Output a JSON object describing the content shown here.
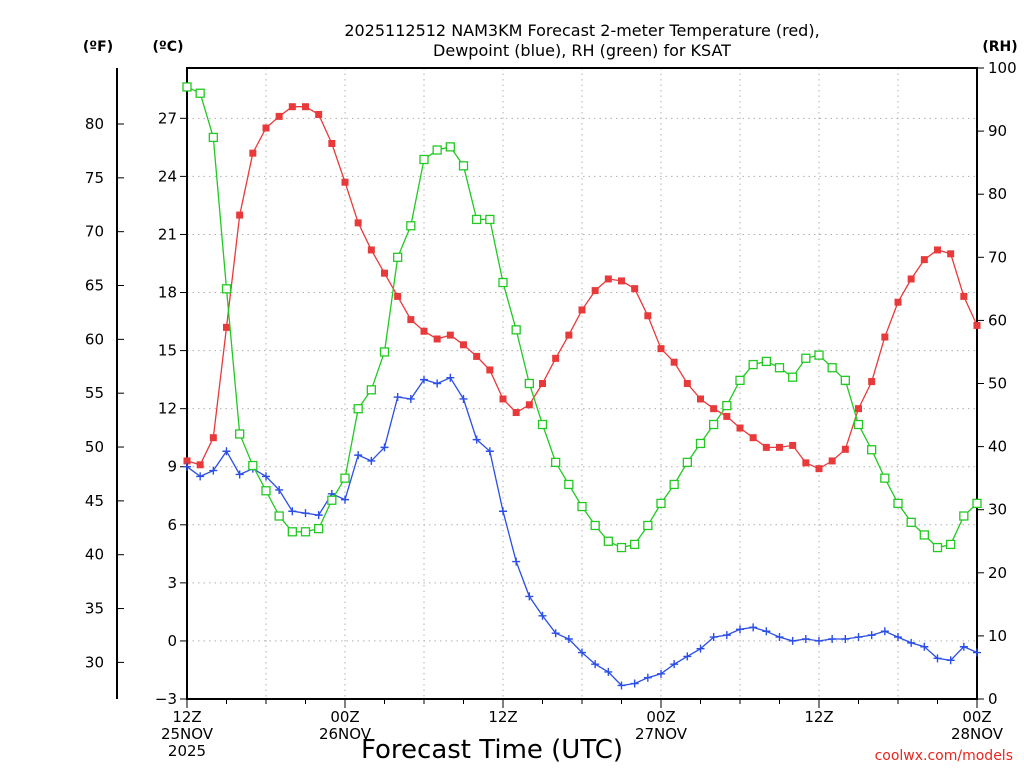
{
  "chart_data": {
    "type": "line",
    "title_lines": [
      "2025112512 NAM3KM Forecast 2-meter Temperature (red),",
      "Dewpoint (blue), RH (green) for KSAT"
    ],
    "xlabel": "Forecast Time (UTC)",
    "credit": "coolwx.com/models",
    "x_unit": "forecast hour",
    "xlim": [
      0,
      60
    ],
    "x_ticks": [
      {
        "x": 0,
        "lines": [
          "12Z",
          "25NOV",
          "2025"
        ]
      },
      {
        "x": 12,
        "lines": [
          "00Z",
          "26NOV"
        ]
      },
      {
        "x": 24,
        "lines": [
          "12Z"
        ]
      },
      {
        "x": 36,
        "lines": [
          "00Z",
          "27NOV"
        ]
      },
      {
        "x": 48,
        "lines": [
          "12Z"
        ]
      },
      {
        "x": 60,
        "lines": [
          "00Z",
          "28NOV"
        ]
      }
    ],
    "axes": {
      "fahrenheit": {
        "unit_label": "(ºF)",
        "range": [
          26.6,
          85.2
        ],
        "ticks": [
          30,
          35,
          40,
          45,
          50,
          55,
          60,
          65,
          70,
          75,
          80
        ]
      },
      "celsius": {
        "unit_label": "(ºC)",
        "range": [
          -3,
          29.6
        ],
        "ticks": [
          -3,
          0,
          3,
          6,
          9,
          12,
          15,
          18,
          21,
          24,
          27
        ],
        "tick_labels": [
          "−3",
          "0",
          "3",
          "6",
          "9",
          "12",
          "15",
          "18",
          "21",
          "24",
          "27"
        ]
      },
      "rh": {
        "unit_label": "(RH)",
        "range": [
          0,
          100
        ],
        "ticks": [
          0,
          10,
          20,
          30,
          40,
          50,
          60,
          70,
          80,
          90,
          100
        ]
      }
    },
    "x": [
      0,
      1,
      2,
      3,
      4,
      5,
      6,
      7,
      8,
      9,
      10,
      11,
      12,
      13,
      14,
      15,
      16,
      17,
      18,
      19,
      20,
      21,
      22,
      23,
      24,
      25,
      26,
      27,
      28,
      29,
      30,
      31,
      32,
      33,
      34,
      35,
      36,
      37,
      38,
      39,
      40,
      41,
      42,
      43,
      44,
      45,
      46,
      47,
      48,
      49,
      50,
      51,
      52,
      53,
      54,
      55,
      56,
      57,
      58,
      59,
      60
    ],
    "series": [
      {
        "name": "Temperature",
        "axis": "celsius",
        "color": "#e83a3a",
        "marker": "filled-square",
        "values": [
          9.3,
          9.1,
          10.5,
          16.2,
          22.0,
          25.2,
          26.5,
          27.1,
          27.6,
          27.6,
          27.2,
          25.7,
          23.7,
          21.6,
          20.2,
          19.0,
          17.8,
          16.6,
          16.0,
          15.6,
          15.8,
          15.3,
          14.7,
          14.0,
          12.5,
          11.8,
          12.2,
          13.3,
          14.6,
          15.8,
          17.1,
          18.1,
          18.7,
          18.6,
          18.2,
          16.8,
          15.1,
          14.4,
          13.3,
          12.5,
          12.0,
          11.6,
          11.0,
          10.5,
          10.0,
          10.0,
          10.1,
          9.2,
          8.9,
          9.3,
          9.9,
          12.0,
          13.4,
          15.7,
          17.5,
          18.7,
          19.7,
          20.2,
          20.0,
          17.8,
          16.3
        ]
      },
      {
        "name": "Dewpoint",
        "axis": "celsius",
        "color": "#2a4ee6",
        "marker": "plus",
        "values": [
          9.0,
          8.5,
          8.8,
          9.8,
          8.6,
          8.9,
          8.5,
          7.8,
          6.7,
          6.6,
          6.5,
          7.6,
          7.3,
          9.6,
          9.3,
          10.0,
          12.6,
          12.5,
          13.5,
          13.3,
          13.6,
          12.5,
          10.4,
          9.8,
          6.7,
          4.1,
          2.3,
          1.3,
          0.4,
          0.1,
          -0.6,
          -1.2,
          -1.6,
          -2.3,
          -2.2,
          -1.9,
          -1.7,
          -1.2,
          -0.8,
          -0.4,
          0.2,
          0.3,
          0.6,
          0.7,
          0.5,
          0.2,
          0.0,
          0.1,
          0.0,
          0.1,
          0.1,
          0.2,
          0.3,
          0.5,
          0.2,
          -0.1,
          -0.3,
          -0.9,
          -1.0,
          -0.3,
          -0.6
        ]
      },
      {
        "name": "RH",
        "axis": "rh",
        "color": "#22c922",
        "marker": "open-square",
        "values": [
          97.0,
          96.0,
          89.0,
          65.0,
          42.0,
          37.0,
          33.0,
          29.0,
          26.5,
          26.5,
          27.0,
          31.5,
          35.0,
          46.0,
          49.0,
          55.0,
          70.0,
          75.0,
          85.5,
          87.0,
          87.5,
          84.5,
          76.0,
          76.0,
          66.0,
          58.5,
          50.0,
          43.5,
          37.5,
          34.0,
          30.5,
          27.5,
          25.0,
          24.0,
          24.5,
          27.5,
          31.0,
          34.0,
          37.5,
          40.5,
          43.5,
          46.5,
          50.5,
          53.0,
          53.5,
          52.5,
          51.0,
          54.0,
          54.5,
          52.5,
          50.5,
          43.5,
          39.5,
          35.0,
          31.0,
          28.0,
          26.0,
          24.0,
          24.5,
          29.0,
          31.0
        ]
      }
    ]
  }
}
